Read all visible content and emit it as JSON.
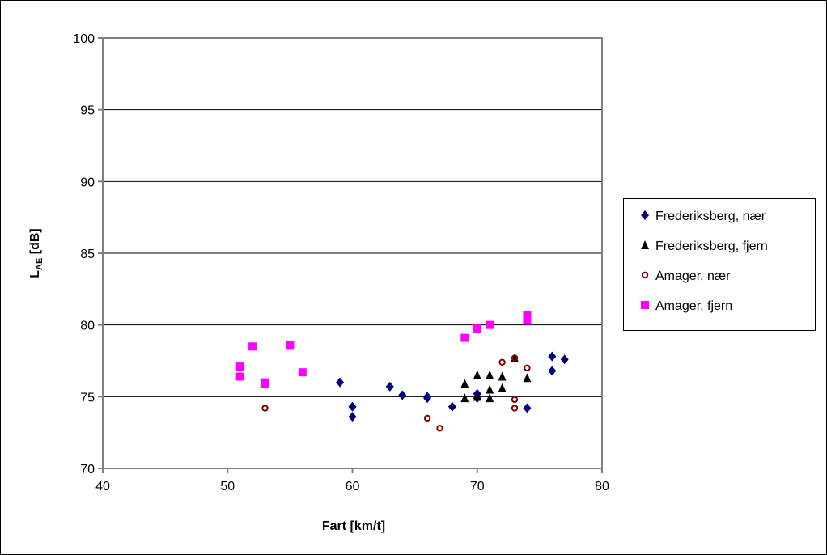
{
  "chart_data": {
    "type": "scatter",
    "xlabel": "Fart [km/t]",
    "ylabel_parts": [
      "L",
      "AE",
      " [dB]"
    ],
    "xlim": [
      40,
      80
    ],
    "xticks": [
      40,
      50,
      60,
      70,
      80
    ],
    "ylim": [
      70,
      100
    ],
    "yticks": [
      70,
      75,
      80,
      85,
      90,
      95,
      100
    ],
    "grid": true,
    "legend": "right",
    "series": [
      {
        "name": "Frederiksberg, nær",
        "color": "#000080",
        "marker": "diamond",
        "x": [
          59,
          60,
          60,
          63,
          64,
          66,
          66,
          68,
          70,
          70,
          74,
          76,
          76,
          77
        ],
        "values": [
          76.0,
          74.3,
          73.6,
          75.7,
          75.1,
          75.0,
          74.9,
          74.3,
          75.2,
          74.9,
          74.2,
          77.8,
          76.8,
          77.6
        ]
      },
      {
        "name": "Frederiksberg, fjern",
        "color": "#000000",
        "marker": "triangle",
        "x": [
          69,
          69,
          70,
          70,
          71,
          71,
          71,
          72,
          72,
          73,
          74
        ],
        "values": [
          75.9,
          74.9,
          76.5,
          75.0,
          76.5,
          75.5,
          74.9,
          76.4,
          75.6,
          77.7,
          76.3
        ]
      },
      {
        "name": "Amager, nær",
        "color": "#800000",
        "marker": "circle",
        "x": [
          53,
          66,
          67,
          72,
          73,
          73,
          73,
          74
        ],
        "values": [
          74.2,
          73.5,
          72.8,
          77.4,
          77.7,
          74.8,
          74.2,
          77.0
        ]
      },
      {
        "name": "Amager, fjern",
        "color": "#ff00ff",
        "marker": "square",
        "x": [
          51,
          51,
          52,
          53,
          53,
          55,
          56,
          69,
          70,
          70,
          71,
          74,
          74
        ],
        "values": [
          77.1,
          76.4,
          78.5,
          76.0,
          75.9,
          78.6,
          76.7,
          79.1,
          79.8,
          79.7,
          80.0,
          80.7,
          80.3
        ]
      }
    ]
  }
}
